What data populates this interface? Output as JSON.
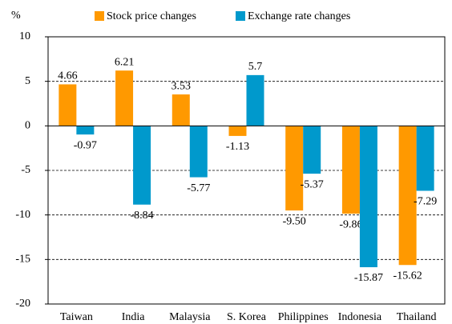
{
  "chart_data": {
    "type": "bar",
    "y_unit": "%",
    "categories": [
      "Taiwan",
      "India",
      "Malaysia",
      "S. Korea",
      "Philippines",
      "Indonesia",
      "Thailand"
    ],
    "series": [
      {
        "name": "Stock price changes",
        "color": "#FF9900",
        "values": [
          4.66,
          6.21,
          3.53,
          -1.13,
          -9.5,
          -9.86,
          -15.62
        ],
        "value_labels": [
          "4.66",
          "6.21",
          "3.53",
          "-1.13",
          "-9.50",
          "-9.86",
          "-15.62"
        ]
      },
      {
        "name": "Exchange rate changes",
        "color": "#0099CC",
        "values": [
          -0.97,
          -8.84,
          -5.77,
          5.7,
          -5.37,
          -15.87,
          -7.29
        ],
        "value_labels": [
          "-0.97",
          "-8.84",
          "-5.77",
          "5.7",
          "-5.37",
          "-15.87",
          "-7.29"
        ]
      }
    ],
    "ylim": [
      -20,
      10
    ],
    "yticks": [
      -20,
      -15,
      -10,
      -5,
      0,
      5,
      10
    ],
    "grid": true,
    "legend": "top"
  }
}
